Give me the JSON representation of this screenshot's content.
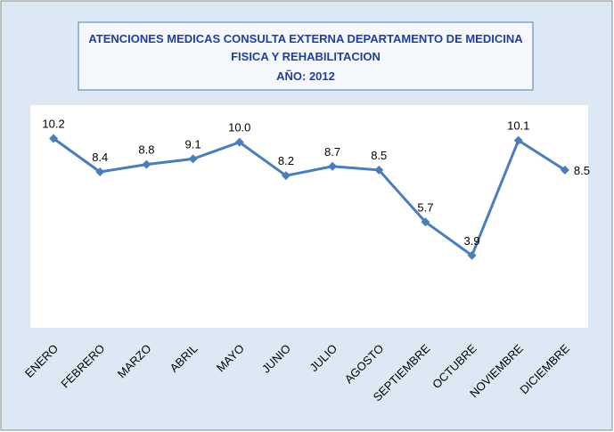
{
  "chart_data": {
    "type": "line",
    "title": [
      "ATENCIONES MEDICAS CONSULTA EXTERNA DEPARTAMENTO DE MEDICINA",
      "FISICA Y REHABILITACION"
    ],
    "subtitle": "AÑO: 2012",
    "categories": [
      "ENERO",
      "FEBRERO",
      "MARZO",
      "ABRIL",
      "MAYO",
      "JUNIO",
      "JULIO",
      "AGOSTO",
      "SEPTIEMBRE",
      "OCTUBRE",
      "NOVIEMBRE",
      "DICIEMBRE"
    ],
    "values": [
      10.2,
      8.4,
      8.8,
      9.1,
      10.0,
      8.2,
      8.7,
      8.5,
      5.7,
      3.9,
      10.1,
      8.5
    ],
    "value_labels": [
      "10.2",
      "8.4",
      "8.8",
      "9.1",
      "10.0",
      "8.2",
      "8.7",
      "8.5",
      "5.7",
      "3.9",
      "10.1",
      "8.5"
    ],
    "color": "#4a7ebb",
    "ylim": [
      0,
      12
    ]
  }
}
